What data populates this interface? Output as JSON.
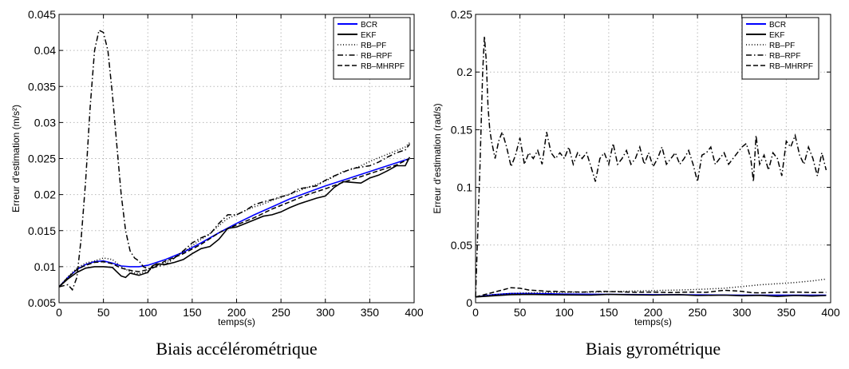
{
  "chart_data": [
    {
      "type": "line",
      "caption": "Biais accélérométrique",
      "xlabel": "temps(s)",
      "ylabel": "Erreur d'estimation (m/s²)",
      "xlim": [
        0,
        400
      ],
      "ylim": [
        0.005,
        0.045
      ],
      "xticks": [
        0,
        50,
        100,
        150,
        200,
        250,
        300,
        350,
        400
      ],
      "xtick_labels": [
        "0",
        "50",
        "100",
        "150",
        "200",
        "250",
        "300",
        "350",
        "400"
      ],
      "yticks": [
        0.005,
        0.01,
        0.015,
        0.02,
        0.025,
        0.03,
        0.035,
        0.04,
        0.045
      ],
      "ytick_labels": [
        "0.005",
        "0.01",
        "0.015",
        "0.02",
        "0.025",
        "0.03",
        "0.035",
        "0.04",
        "0.045"
      ],
      "grid": true,
      "legend_position": "top-right",
      "series": [
        {
          "name": "BCR",
          "color": "#0000ff",
          "style": "solid",
          "x": [
            0,
            10,
            20,
            30,
            40,
            50,
            60,
            70,
            80,
            90,
            100,
            120,
            140,
            160,
            180,
            200,
            220,
            240,
            260,
            280,
            300,
            320,
            340,
            360,
            380,
            395
          ],
          "y": [
            0.0072,
            0.0085,
            0.0096,
            0.0103,
            0.0107,
            0.0108,
            0.0105,
            0.0101,
            0.01,
            0.01,
            0.0102,
            0.011,
            0.012,
            0.0133,
            0.0147,
            0.016,
            0.0172,
            0.0183,
            0.0194,
            0.0203,
            0.0212,
            0.022,
            0.0228,
            0.0236,
            0.0244,
            0.025
          ]
        },
        {
          "name": "EKF",
          "color": "#000000",
          "style": "solid",
          "x": [
            0,
            10,
            20,
            30,
            40,
            50,
            60,
            65,
            70,
            75,
            80,
            90,
            100,
            105,
            110,
            120,
            130,
            140,
            150,
            160,
            170,
            180,
            190,
            200,
            210,
            220,
            230,
            240,
            250,
            260,
            270,
            280,
            290,
            300,
            310,
            320,
            330,
            340,
            350,
            360,
            370,
            380,
            390,
            395
          ],
          "y": [
            0.0072,
            0.0083,
            0.0092,
            0.0098,
            0.01,
            0.01,
            0.0099,
            0.0093,
            0.0087,
            0.0085,
            0.0091,
            0.0088,
            0.0092,
            0.0101,
            0.0104,
            0.0103,
            0.0106,
            0.011,
            0.0118,
            0.0125,
            0.0128,
            0.0138,
            0.0153,
            0.0155,
            0.016,
            0.0165,
            0.017,
            0.0172,
            0.0176,
            0.0182,
            0.0187,
            0.0191,
            0.0195,
            0.0198,
            0.021,
            0.0218,
            0.0217,
            0.0216,
            0.0223,
            0.0227,
            0.0233,
            0.024,
            0.024,
            0.0252
          ]
        },
        {
          "name": "RB–PF",
          "color": "#000000",
          "style": "dotted",
          "x": [
            0,
            10,
            20,
            30,
            40,
            50,
            60,
            70,
            80,
            90,
            100,
            110,
            120,
            130,
            140,
            150,
            160,
            170,
            180,
            190,
            200,
            210,
            220,
            230,
            240,
            250,
            260,
            270,
            280,
            290,
            300,
            310,
            320,
            330,
            340,
            350,
            360,
            370,
            380,
            390,
            395
          ],
          "y": [
            0.0072,
            0.0086,
            0.0098,
            0.0105,
            0.0108,
            0.0112,
            0.011,
            0.01,
            0.0093,
            0.009,
            0.0094,
            0.0101,
            0.0106,
            0.0113,
            0.012,
            0.0129,
            0.0138,
            0.0146,
            0.0157,
            0.0167,
            0.0172,
            0.0178,
            0.0183,
            0.0187,
            0.0192,
            0.0196,
            0.0201,
            0.0205,
            0.021,
            0.0214,
            0.0219,
            0.0225,
            0.0232,
            0.0235,
            0.024,
            0.0246,
            0.0251,
            0.0256,
            0.0261,
            0.0266,
            0.0272
          ]
        },
        {
          "name": "RB–RPF",
          "color": "#000000",
          "style": "dashdot",
          "x": [
            0,
            10,
            15,
            20,
            25,
            30,
            35,
            40,
            45,
            50,
            55,
            60,
            65,
            70,
            75,
            80,
            85,
            90,
            95,
            100,
            110,
            120,
            130,
            140,
            150,
            160,
            170,
            180,
            190,
            200,
            210,
            220,
            230,
            240,
            250,
            260,
            270,
            280,
            290,
            300,
            310,
            320,
            330,
            340,
            350,
            360,
            370,
            380,
            390,
            395
          ],
          "y": [
            0.0072,
            0.0075,
            0.0068,
            0.0085,
            0.014,
            0.022,
            0.032,
            0.04,
            0.0428,
            0.0425,
            0.04,
            0.034,
            0.027,
            0.02,
            0.015,
            0.0122,
            0.0112,
            0.0108,
            0.01,
            0.0097,
            0.01,
            0.0103,
            0.0112,
            0.0122,
            0.0133,
            0.014,
            0.0145,
            0.016,
            0.0172,
            0.0172,
            0.0178,
            0.0186,
            0.019,
            0.0193,
            0.0197,
            0.02,
            0.0208,
            0.021,
            0.0212,
            0.022,
            0.0226,
            0.0231,
            0.0236,
            0.0238,
            0.024,
            0.0245,
            0.0252,
            0.0258,
            0.0262,
            0.027
          ]
        },
        {
          "name": "RB–MHRPF",
          "color": "#000000",
          "style": "dashed",
          "x": [
            0,
            10,
            20,
            30,
            40,
            50,
            60,
            70,
            80,
            90,
            100,
            110,
            120,
            140,
            160,
            180,
            200,
            220,
            240,
            260,
            280,
            300,
            320,
            340,
            360,
            380,
            395
          ],
          "y": [
            0.0072,
            0.0085,
            0.0096,
            0.0102,
            0.0106,
            0.0107,
            0.0104,
            0.0098,
            0.0095,
            0.0093,
            0.0096,
            0.0102,
            0.0108,
            0.0118,
            0.0131,
            0.0147,
            0.0158,
            0.0168,
            0.018,
            0.019,
            0.02,
            0.0208,
            0.0217,
            0.0225,
            0.0233,
            0.0241,
            0.025
          ]
        }
      ]
    },
    {
      "type": "line",
      "caption": "Biais gyrométrique",
      "xlabel": "temps(s)",
      "ylabel": "Erreur d'estimation (rad/s)",
      "xlim": [
        0,
        400
      ],
      "ylim": [
        0,
        0.25
      ],
      "xticks": [
        0,
        50,
        100,
        150,
        200,
        250,
        300,
        350,
        400
      ],
      "xtick_labels": [
        "0",
        "50",
        "100",
        "150",
        "200",
        "250",
        "300",
        "350",
        "400"
      ],
      "yticks": [
        0,
        0.05,
        0.1,
        0.15,
        0.2,
        0.25
      ],
      "ytick_labels": [
        "0",
        "0.05",
        "0.1",
        "0.15",
        "0.2",
        "0.25"
      ],
      "grid": true,
      "legend_position": "top-right",
      "series": [
        {
          "name": "BCR",
          "color": "#0000ff",
          "style": "solid",
          "x": [
            0,
            20,
            40,
            60,
            80,
            100,
            150,
            200,
            250,
            300,
            350,
            395
          ],
          "y": [
            0.005,
            0.007,
            0.008,
            0.008,
            0.0078,
            0.0075,
            0.0072,
            0.007,
            0.0068,
            0.0066,
            0.0065,
            0.0065
          ]
        },
        {
          "name": "EKF",
          "color": "#000000",
          "style": "solid",
          "x": [
            0,
            20,
            40,
            60,
            80,
            100,
            130,
            150,
            180,
            200,
            230,
            250,
            280,
            300,
            320,
            340,
            360,
            380,
            395
          ],
          "y": [
            0.005,
            0.006,
            0.007,
            0.0072,
            0.007,
            0.0068,
            0.0066,
            0.0072,
            0.0068,
            0.0066,
            0.007,
            0.0062,
            0.0066,
            0.006,
            0.0064,
            0.0055,
            0.0062,
            0.0058,
            0.0062
          ]
        },
        {
          "name": "RB–PF",
          "color": "#000000",
          "style": "dotted",
          "x": [
            0,
            20,
            40,
            60,
            80,
            100,
            130,
            150,
            170,
            200,
            230,
            250,
            280,
            300,
            320,
            340,
            360,
            380,
            395
          ],
          "y": [
            0.005,
            0.007,
            0.008,
            0.0085,
            0.0088,
            0.009,
            0.0092,
            0.0095,
            0.01,
            0.0105,
            0.011,
            0.0115,
            0.0125,
            0.014,
            0.0155,
            0.0165,
            0.0175,
            0.019,
            0.0205
          ]
        },
        {
          "name": "RB–RPF",
          "color": "#000000",
          "style": "dashdot",
          "x": [
            0,
            2,
            5,
            8,
            10,
            12,
            14,
            16,
            18,
            22,
            26,
            30,
            35,
            40,
            45,
            50,
            55,
            60,
            65,
            70,
            75,
            80,
            85,
            90,
            95,
            100,
            105,
            110,
            115,
            120,
            125,
            130,
            135,
            140,
            145,
            150,
            155,
            160,
            165,
            170,
            175,
            180,
            185,
            190,
            195,
            200,
            205,
            210,
            215,
            220,
            225,
            230,
            235,
            240,
            245,
            250,
            255,
            260,
            265,
            270,
            275,
            280,
            285,
            290,
            295,
            300,
            305,
            310,
            313,
            316,
            320,
            325,
            330,
            335,
            340,
            345,
            350,
            355,
            360,
            365,
            370,
            375,
            380,
            385,
            390,
            395
          ],
          "y": [
            0.005,
            0.05,
            0.12,
            0.2,
            0.231,
            0.21,
            0.17,
            0.15,
            0.14,
            0.125,
            0.14,
            0.148,
            0.135,
            0.118,
            0.128,
            0.143,
            0.12,
            0.13,
            0.125,
            0.132,
            0.12,
            0.148,
            0.13,
            0.125,
            0.13,
            0.125,
            0.135,
            0.12,
            0.13,
            0.125,
            0.13,
            0.118,
            0.105,
            0.125,
            0.13,
            0.12,
            0.138,
            0.12,
            0.125,
            0.132,
            0.12,
            0.125,
            0.135,
            0.12,
            0.13,
            0.118,
            0.125,
            0.135,
            0.12,
            0.125,
            0.13,
            0.12,
            0.125,
            0.132,
            0.12,
            0.105,
            0.128,
            0.13,
            0.135,
            0.12,
            0.125,
            0.13,
            0.12,
            0.125,
            0.13,
            0.135,
            0.138,
            0.125,
            0.105,
            0.145,
            0.12,
            0.128,
            0.115,
            0.13,
            0.125,
            0.11,
            0.14,
            0.135,
            0.145,
            0.128,
            0.12,
            0.135,
            0.125,
            0.11,
            0.13,
            0.115
          ]
        },
        {
          "name": "RB–MHRPF",
          "color": "#000000",
          "style": "dashed",
          "x": [
            0,
            10,
            20,
            30,
            40,
            50,
            60,
            70,
            80,
            90,
            100,
            120,
            140,
            160,
            180,
            200,
            220,
            240,
            260,
            280,
            300,
            310,
            320,
            340,
            360,
            380,
            395
          ],
          "y": [
            0.005,
            0.007,
            0.009,
            0.011,
            0.013,
            0.0125,
            0.011,
            0.0105,
            0.01,
            0.0098,
            0.0095,
            0.0092,
            0.0098,
            0.0095,
            0.009,
            0.0092,
            0.0088,
            0.0092,
            0.009,
            0.0108,
            0.0098,
            0.0088,
            0.0085,
            0.009,
            0.0092,
            0.0088,
            0.009
          ]
        }
      ]
    }
  ]
}
